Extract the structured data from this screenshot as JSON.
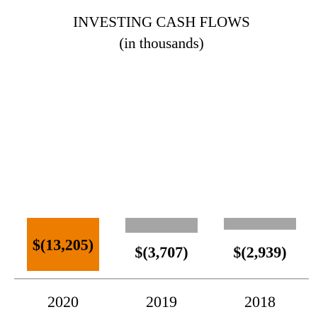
{
  "chart_data": {
    "type": "bar",
    "title": "INVESTING CASH FLOWS",
    "subtitle": "(in thousands)",
    "categories": [
      "2020",
      "2019",
      "2018"
    ],
    "values": [
      -13205,
      -3707,
      -2939
    ],
    "data_labels": [
      "$(13,205)",
      "$(3,707)",
      "$(2,939)"
    ],
    "xlabel": "",
    "ylabel": "",
    "ylim": [
      -13205,
      0
    ],
    "grid": false,
    "legend": "none",
    "colors": [
      "#ED7D00",
      "#A5A5A5",
      "#A5A5A5"
    ],
    "axis_color": "#A5A5A5",
    "label_color": "#000000"
  }
}
